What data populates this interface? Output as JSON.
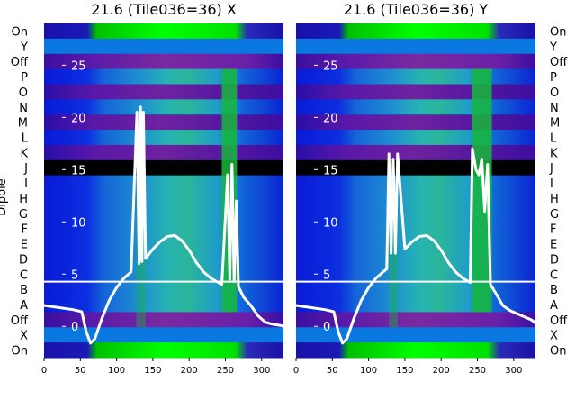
{
  "figure": {
    "ylabel": "Dipole",
    "row_labels": [
      "On",
      "Y",
      "Off",
      "P",
      "O",
      "N",
      "M",
      "L",
      "K",
      "J",
      "I",
      "H",
      "G",
      "F",
      "E",
      "D",
      "C",
      "B",
      "A",
      "Off",
      "X",
      "On"
    ],
    "x_ticks": [
      0,
      50,
      100,
      150,
      200,
      250,
      300
    ],
    "overlay_y_ticks": [
      0,
      5,
      10,
      15,
      20,
      25
    ],
    "colors": {
      "wave": "#ffffff",
      "band": "#000000",
      "text": "#000000",
      "overlay_text": "#ffffff"
    }
  },
  "chart_data": [
    {
      "type": "heatmap",
      "title": "21.6 (Tile036=36) X",
      "xlim": [
        0,
        330
      ],
      "overlay_ylim": [
        -3,
        29
      ],
      "saturated_columns": [
        {
          "x": [
            245,
            266
          ],
          "rows": "all"
        },
        {
          "x": [
            127,
            140
          ],
          "rows": "partial"
        }
      ],
      "overlay_series": [
        {
          "type": "line",
          "note": "power vs x",
          "x": [
            0,
            20,
            40,
            52,
            58,
            64,
            70,
            80,
            90,
            100,
            110,
            120,
            128,
            131,
            133,
            135,
            137,
            140,
            150,
            160,
            170,
            180,
            190,
            200,
            210,
            220,
            230,
            240,
            245,
            250,
            253,
            256,
            259,
            262,
            265,
            268,
            275,
            285,
            295,
            305,
            315,
            325,
            330
          ],
          "y": [
            2,
            1.8,
            1.6,
            1.4,
            -0.5,
            -1.6,
            -1.2,
            0.8,
            2.5,
            3.7,
            4.6,
            5.2,
            20.5,
            6.0,
            21.0,
            6.2,
            20.5,
            6.5,
            7.4,
            8.1,
            8.6,
            8.7,
            8.2,
            7.3,
            6.1,
            5.2,
            4.6,
            4.2,
            4.0,
            10.5,
            14.5,
            4.5,
            15.5,
            4.3,
            12.0,
            3.8,
            2.8,
            2.0,
            1.0,
            0.4,
            0.2,
            0.1,
            0.0
          ]
        }
      ]
    },
    {
      "type": "heatmap",
      "title": "21.6 (Tile036=36) Y",
      "xlim": [
        0,
        330
      ],
      "overlay_ylim": [
        -3,
        29
      ],
      "saturated_columns": [
        {
          "x": [
            243,
            270
          ],
          "rows": "all"
        },
        {
          "x": [
            128,
            140
          ],
          "rows": "partial"
        }
      ],
      "overlay_series": [
        {
          "type": "line",
          "note": "power vs x",
          "x": [
            0,
            20,
            40,
            52,
            58,
            64,
            70,
            80,
            90,
            100,
            110,
            120,
            125,
            128,
            131,
            134,
            137,
            140,
            150,
            160,
            170,
            180,
            190,
            200,
            210,
            220,
            230,
            240,
            243,
            248,
            252,
            256,
            260,
            264,
            268,
            275,
            285,
            295,
            305,
            315,
            325,
            330
          ],
          "y": [
            2,
            1.8,
            1.6,
            1.4,
            -0.5,
            -1.6,
            -1.2,
            0.8,
            2.5,
            3.7,
            4.6,
            5.2,
            5.5,
            16.5,
            7.0,
            16.0,
            7.0,
            16.5,
            7.4,
            8.1,
            8.6,
            8.7,
            8.2,
            7.3,
            6.1,
            5.2,
            4.6,
            4.2,
            17.0,
            15.0,
            14.5,
            16.0,
            11.0,
            15.5,
            4.0,
            3.2,
            2.0,
            1.5,
            1.2,
            0.9,
            0.6,
            0.3
          ]
        }
      ]
    }
  ]
}
